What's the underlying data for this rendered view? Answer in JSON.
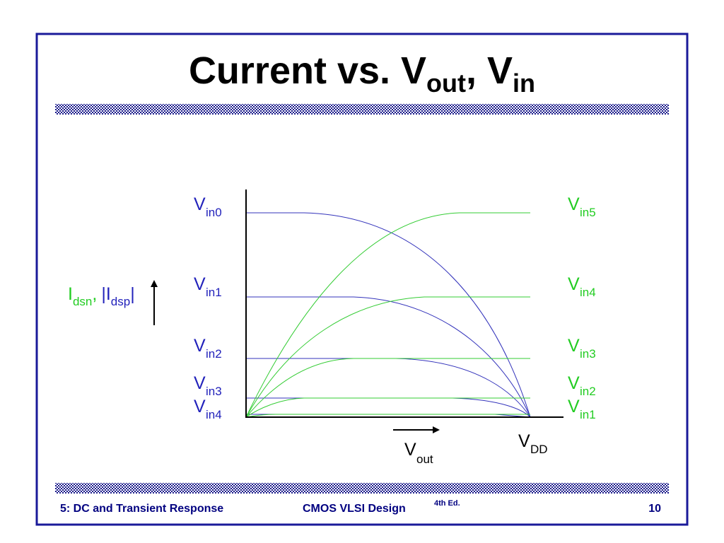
{
  "title": {
    "main": "Current vs. V",
    "sub1": "out",
    "mid": ", V",
    "sub2": "in"
  },
  "left_labels": [
    {
      "base": "V",
      "sub": "in0"
    },
    {
      "base": "V",
      "sub": "in1"
    },
    {
      "base": "V",
      "sub": "in2"
    },
    {
      "base": "V",
      "sub": "in3"
    },
    {
      "base": "V",
      "sub": "in4"
    }
  ],
  "right_labels": [
    {
      "base": "V",
      "sub": "in5"
    },
    {
      "base": "V",
      "sub": "in4"
    },
    {
      "base": "V",
      "sub": "in3"
    },
    {
      "base": "V",
      "sub": "in2"
    },
    {
      "base": "V",
      "sub": "in1"
    }
  ],
  "y_label": {
    "n": "I",
    "n_sub": "dsn",
    "comma": ",",
    "p": "|I",
    "p_sub": "dsp",
    "bar": "|"
  },
  "x_label": {
    "base": "V",
    "sub": "out"
  },
  "vdd_label": {
    "base": "V",
    "sub": "DD"
  },
  "footer": {
    "left": "5: DC and Transient Response",
    "center": "CMOS VLSI Design",
    "edition": "4th Ed.",
    "page": "10"
  }
}
